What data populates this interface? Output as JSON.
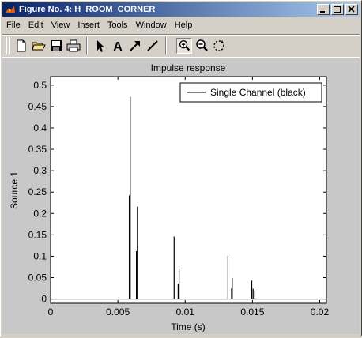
{
  "window": {
    "title": "Figure No. 4: H_ROOM_CORNER",
    "min_icon": "minimize-icon",
    "max_icon": "maximize-icon",
    "close_icon": "close-icon"
  },
  "menu": [
    "File",
    "Edit",
    "View",
    "Insert",
    "Tools",
    "Window",
    "Help"
  ],
  "toolbar": [
    "new-file-icon",
    "open-folder-icon",
    "save-icon",
    "print-icon",
    "select-arrow-icon",
    "insert-text-icon",
    "insert-arrow-icon",
    "insert-line-icon",
    "zoom-in-icon",
    "zoom-out-icon",
    "rotate-icon"
  ],
  "chart_data": {
    "type": "line",
    "title": "Impulse response",
    "xlabel": "Time (s)",
    "ylabel": "Source 1",
    "xlim": [
      0,
      0.0205
    ],
    "ylim": [
      -0.01,
      0.52
    ],
    "xticks": [
      0,
      0.005,
      0.01,
      0.015,
      0.02
    ],
    "xtick_labels": [
      "0",
      "0.005",
      "0.01",
      "0.015",
      "0.02"
    ],
    "yticks": [
      0,
      0.05,
      0.1,
      0.15,
      0.2,
      0.25,
      0.3,
      0.35,
      0.4,
      0.45,
      0.5
    ],
    "ytick_labels": [
      "0",
      "0.05",
      "0.1",
      "0.15",
      "0.2",
      "0.25",
      "0.3",
      "0.35",
      "0.4",
      "0.45",
      "0.5"
    ],
    "grid": false,
    "legend_position": "top-right",
    "series": [
      {
        "name": "Single Channel (black)",
        "color": "#000000",
        "impulses": [
          {
            "x": 0.00585,
            "y": 0.242
          },
          {
            "x": 0.00592,
            "y": 0.473
          },
          {
            "x": 0.00638,
            "y": 0.112
          },
          {
            "x": 0.00645,
            "y": 0.216
          },
          {
            "x": 0.00918,
            "y": 0.146
          },
          {
            "x": 0.00948,
            "y": 0.036
          },
          {
            "x": 0.00955,
            "y": 0.071
          },
          {
            "x": 0.01318,
            "y": 0.101
          },
          {
            "x": 0.01345,
            "y": 0.025
          },
          {
            "x": 0.0135,
            "y": 0.049
          },
          {
            "x": 0.01495,
            "y": 0.043
          },
          {
            "x": 0.01505,
            "y": 0.024
          },
          {
            "x": 0.01518,
            "y": 0.02
          }
        ]
      }
    ]
  }
}
